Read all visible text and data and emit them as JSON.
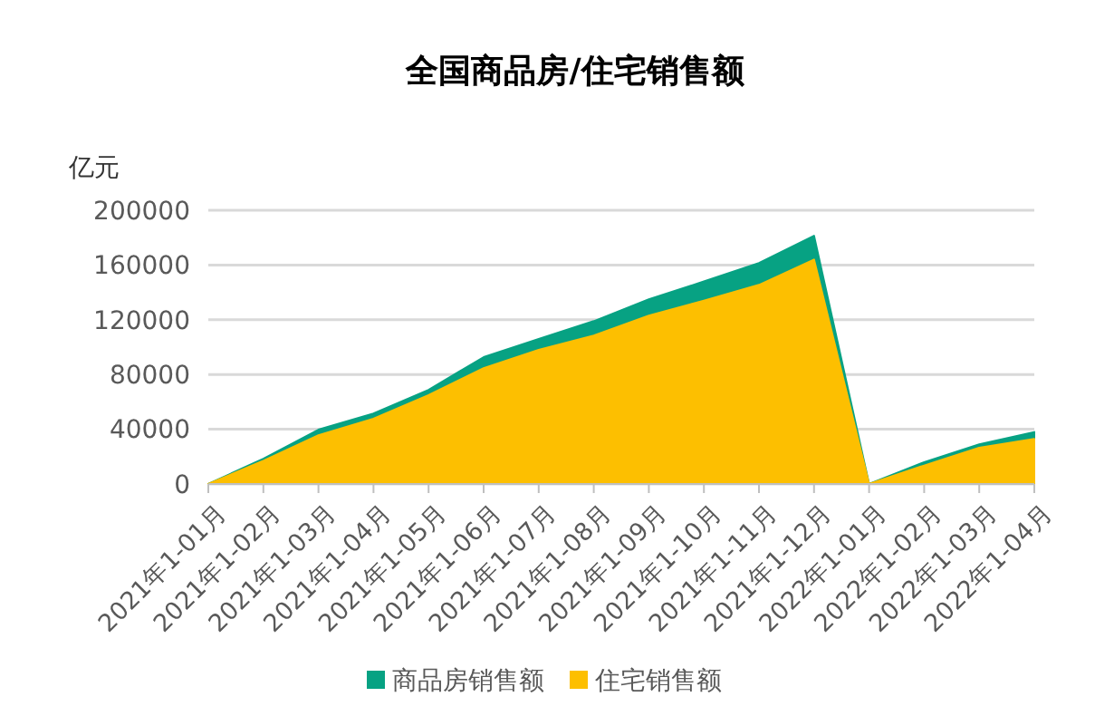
{
  "chart_data": {
    "type": "area",
    "title": "全国商品房/住宅销售额",
    "ylabel": "亿元",
    "categories": [
      "2021年1-01月",
      "2021年1-02月",
      "2021年1-03月",
      "2021年1-04月",
      "2021年1-05月",
      "2021年1-06月",
      "2021年1-07月",
      "2021年1-08月",
      "2021年1-09月",
      "2021年1-10月",
      "2021年1-11月",
      "2021年1-12月",
      "2022年1-01月",
      "2022年1-02月",
      "2022年1-03月",
      "2022年1-04月"
    ],
    "series": [
      {
        "name": "商品房销售额",
        "color": "#07a283",
        "values": [
          0,
          18500,
          39700,
          51600,
          68800,
          92700,
          106000,
          119000,
          135000,
          148000,
          161500,
          181400,
          0,
          16000,
          29000,
          38000
        ]
      },
      {
        "name": "住宅销售额",
        "color": "#fdbf00",
        "values": [
          0,
          17000,
          35700,
          47700,
          64900,
          84700,
          98000,
          108500,
          123000,
          134000,
          145500,
          164000,
          0,
          13500,
          26500,
          33000
        ]
      }
    ],
    "ylim": [
      0,
      200000
    ],
    "yticks": [
      0,
      40000,
      80000,
      120000,
      160000,
      200000
    ],
    "grid": "y",
    "legend": "bottom"
  }
}
